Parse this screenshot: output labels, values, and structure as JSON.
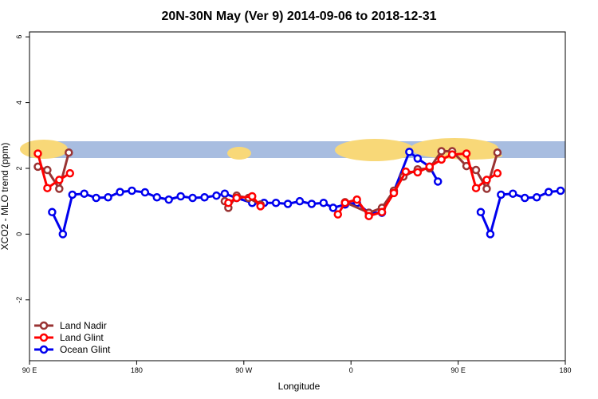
{
  "chart_data": {
    "type": "line",
    "title": "20N-30N May (Ver 9)   2014-09-06 to 2018-12-31",
    "xlabel": "Longitude",
    "ylabel": "XCO2 - MLO trend (ppm)",
    "xlim": [
      90,
      540
    ],
    "ylim": [
      -3.85,
      6.15
    ],
    "xticks": [
      {
        "value": 90,
        "label": "90 E"
      },
      180,
      {
        "value": 270,
        "label": "90 W"
      },
      {
        "value": 360,
        "label": "0"
      },
      {
        "value": 450,
        "label": "90 E"
      },
      {
        "value": 540,
        "label": "180"
      }
    ],
    "yticks": [
      -2,
      0,
      2,
      4,
      6
    ],
    "legend": "bottom-left",
    "series": [
      {
        "name": "Land Nadir",
        "color": "#993333",
        "x": [
          97,
          105,
          115,
          123,
          200,
          254,
          257,
          264,
          274,
          284,
          320,
          355,
          375,
          386,
          396,
          404,
          416,
          426,
          436,
          445,
          457,
          465,
          474,
          483
        ],
        "values": [
          2.05,
          1.95,
          1.38,
          2.48,
          null,
          1.0,
          0.8,
          1.17,
          1.1,
          0.9,
          null,
          0.97,
          0.65,
          0.8,
          1.32,
          1.75,
          1.97,
          2.0,
          2.52,
          2.52,
          2.07,
          1.95,
          1.38,
          2.48
        ]
      },
      {
        "name": "Land Glint",
        "color": "#ff0000",
        "x": [
          97,
          105,
          115,
          124,
          200,
          257,
          264,
          277,
          284,
          320,
          349,
          355,
          365,
          375,
          386,
          396,
          406,
          416,
          426,
          436,
          445,
          457,
          465,
          474,
          483
        ],
        "values": [
          2.45,
          1.4,
          1.65,
          1.85,
          null,
          0.95,
          1.1,
          1.15,
          0.85,
          null,
          0.6,
          0.95,
          1.05,
          0.55,
          0.67,
          1.25,
          1.9,
          1.88,
          2.05,
          2.27,
          2.42,
          2.45,
          1.4,
          1.65,
          1.85
        ]
      },
      {
        "name": "Ocean Glint",
        "color": "#0000ee",
        "x": [
          109,
          118,
          126,
          136,
          146,
          156,
          166,
          176,
          187,
          197,
          207,
          217,
          227,
          237,
          247,
          254,
          264,
          277,
          287,
          297,
          307,
          317,
          327,
          337,
          345,
          355,
          365,
          375,
          386,
          396,
          409,
          416,
          426,
          433,
          450,
          469,
          477,
          486,
          496,
          506,
          516,
          526,
          536
        ],
        "values": [
          0.67,
          0,
          1.2,
          1.23,
          1.1,
          1.12,
          1.28,
          1.32,
          1.27,
          1.12,
          1.05,
          1.15,
          1.1,
          1.12,
          1.17,
          1.23,
          1.1,
          0.95,
          0.95,
          0.95,
          0.92,
          1.0,
          0.92,
          0.95,
          0.8,
          0.9,
          0.95,
          0.65,
          0.65,
          1.3,
          2.5,
          2.3,
          2.05,
          1.6,
          null,
          0.67,
          0,
          1.2,
          1.23,
          1.1,
          1.12,
          1.28,
          1.32
        ]
      }
    ]
  }
}
